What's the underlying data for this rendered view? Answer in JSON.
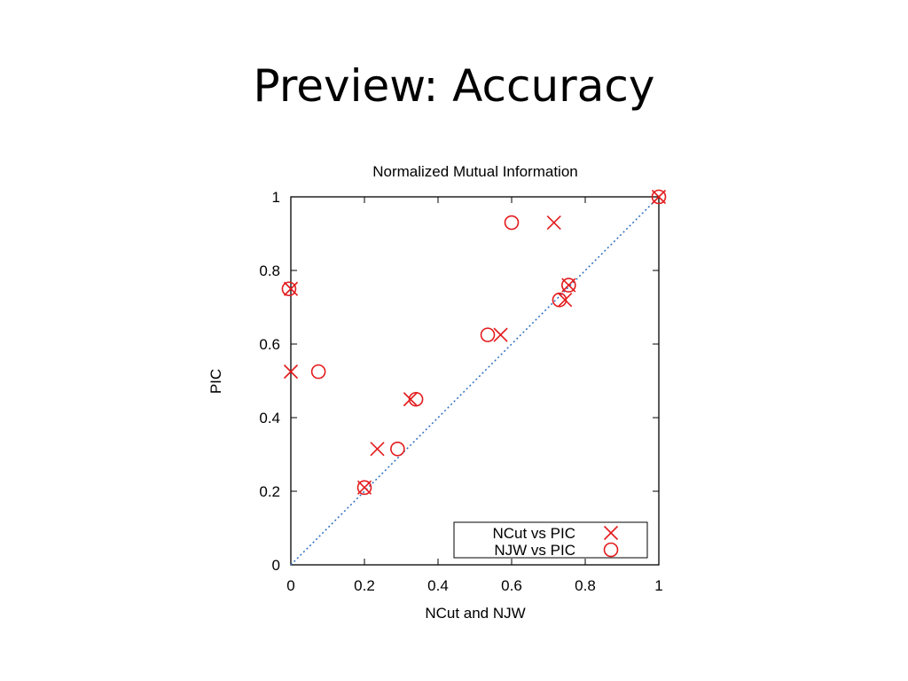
{
  "slide": {
    "title": "Preview: Accuracy"
  },
  "colors": {
    "marker": "#e31a1c",
    "diagonal": "#2f6fbf",
    "axis": "#000000"
  },
  "chart_data": {
    "type": "scatter",
    "title": "Normalized Mutual Information",
    "xlabel": "NCut and NJW",
    "ylabel": "PIC",
    "xlim": [
      0,
      1
    ],
    "ylim": [
      0,
      1
    ],
    "xticks": [
      "0",
      "0.2",
      "0.4",
      "0.6",
      "0.8",
      "1"
    ],
    "yticks": [
      "0",
      "0.2",
      "0.4",
      "0.6",
      "0.8",
      "1"
    ],
    "grid": false,
    "legend_position": "bottom-right",
    "reference_line": {
      "style": "dotted",
      "from": [
        0,
        0
      ],
      "to": [
        1,
        1
      ]
    },
    "series": [
      {
        "name": "NCut vs PIC",
        "marker": "x",
        "points": [
          {
            "x": 0.0,
            "y": 0.75
          },
          {
            "x": 0.0,
            "y": 0.525
          },
          {
            "x": 0.2,
            "y": 0.21
          },
          {
            "x": 0.235,
            "y": 0.315
          },
          {
            "x": 0.325,
            "y": 0.45
          },
          {
            "x": 0.57,
            "y": 0.625
          },
          {
            "x": 0.715,
            "y": 0.93
          },
          {
            "x": 0.745,
            "y": 0.72
          },
          {
            "x": 0.755,
            "y": 0.76
          },
          {
            "x": 1.0,
            "y": 1.0
          }
        ]
      },
      {
        "name": "NJW vs PIC",
        "marker": "circle",
        "points": [
          {
            "x": -0.005,
            "y": 0.75
          },
          {
            "x": 0.075,
            "y": 0.525
          },
          {
            "x": 0.2,
            "y": 0.21
          },
          {
            "x": 0.29,
            "y": 0.315
          },
          {
            "x": 0.34,
            "y": 0.45
          },
          {
            "x": 0.535,
            "y": 0.625
          },
          {
            "x": 0.6,
            "y": 0.93
          },
          {
            "x": 0.73,
            "y": 0.72
          },
          {
            "x": 0.755,
            "y": 0.76
          },
          {
            "x": 1.0,
            "y": 1.0
          }
        ]
      }
    ]
  }
}
